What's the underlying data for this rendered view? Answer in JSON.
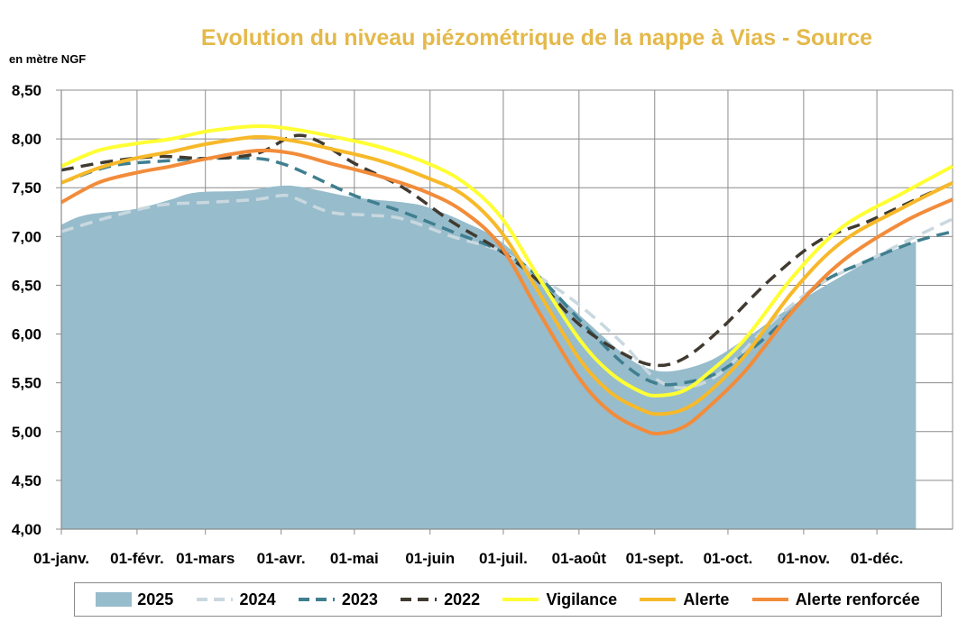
{
  "chart_data": {
    "type": "area",
    "title": "Evolution du niveau piézométrique de la nappe à Vias  - Source",
    "ylabel": "en mètre NGF",
    "ylim": [
      4.0,
      8.5
    ],
    "yticks": [
      "4,00",
      "4,50",
      "5,00",
      "5,50",
      "6,00",
      "6,50",
      "7,00",
      "7,50",
      "8,00",
      "8,50"
    ],
    "ytick_values": [
      4.0,
      4.5,
      5.0,
      5.5,
      6.0,
      6.5,
      7.0,
      7.5,
      8.0,
      8.5
    ],
    "xlim": [
      0,
      365
    ],
    "xticks": [
      "01-janv.",
      "01-févr.",
      "01-mars",
      "01-avr.",
      "01-mai",
      "01-juin",
      "01-juil.",
      "01-août",
      "01-sept.",
      "01-oct.",
      "01-nov.",
      "01-déc."
    ],
    "xtick_days": [
      0,
      31,
      59,
      90,
      120,
      151,
      181,
      212,
      243,
      273,
      304,
      334
    ],
    "grid": true,
    "legend_position": "bottom",
    "series": [
      {
        "name": "2025",
        "style": "area",
        "color": "#97bccc",
        "x": [
          0,
          10,
          30,
          45,
          55,
          75,
          90,
          100,
          120,
          140,
          150,
          165,
          180,
          195,
          212,
          230,
          240,
          250,
          265,
          280,
          300,
          320,
          335,
          350
        ],
        "y": [
          7.12,
          7.22,
          7.28,
          7.38,
          7.45,
          7.47,
          7.52,
          7.5,
          7.4,
          7.35,
          7.3,
          7.15,
          6.95,
          6.6,
          6.2,
          5.8,
          5.65,
          5.62,
          5.72,
          5.95,
          6.3,
          6.6,
          6.8,
          6.95
        ]
      },
      {
        "name": "2024",
        "style": "dashed",
        "color": "#c9d8df",
        "x": [
          0,
          20,
          40,
          60,
          80,
          90,
          95,
          110,
          125,
          140,
          160,
          180,
          195,
          212,
          230,
          243,
          255,
          270,
          290,
          310,
          330,
          350,
          365
        ],
        "y": [
          7.05,
          7.2,
          7.32,
          7.35,
          7.38,
          7.42,
          7.4,
          7.25,
          7.22,
          7.18,
          7.0,
          6.85,
          6.6,
          6.3,
          5.9,
          5.55,
          5.45,
          5.6,
          6.1,
          6.5,
          6.75,
          7.0,
          7.18
        ]
      },
      {
        "name": "2023",
        "style": "dashed",
        "color": "#3f7f8f",
        "x": [
          0,
          20,
          40,
          60,
          80,
          90,
          100,
          120,
          140,
          160,
          180,
          195,
          212,
          230,
          243,
          255,
          270,
          290,
          310,
          330,
          350,
          365
        ],
        "y": [
          7.55,
          7.72,
          7.77,
          7.8,
          7.8,
          7.75,
          7.65,
          7.42,
          7.25,
          7.05,
          6.85,
          6.6,
          6.15,
          5.7,
          5.5,
          5.5,
          5.62,
          6.0,
          6.5,
          6.75,
          6.95,
          7.05
        ]
      },
      {
        "name": "2022",
        "style": "dashed",
        "color": "#403a30",
        "x": [
          0,
          20,
          40,
          60,
          80,
          95,
          105,
          120,
          140,
          160,
          180,
          195,
          212,
          230,
          243,
          255,
          270,
          290,
          310,
          330,
          350,
          365
        ],
        "y": [
          7.68,
          7.77,
          7.82,
          7.8,
          7.85,
          8.03,
          7.98,
          7.75,
          7.5,
          7.15,
          6.85,
          6.55,
          6.1,
          5.8,
          5.68,
          5.75,
          6.05,
          6.55,
          6.95,
          7.15,
          7.38,
          7.55
        ]
      },
      {
        "name": "Vigilance",
        "style": "solid",
        "color": "#ffff33",
        "x": [
          0,
          15,
          30,
          45,
          60,
          80,
          95,
          110,
          130,
          150,
          165,
          180,
          195,
          212,
          225,
          238,
          245,
          255,
          265,
          280,
          300,
          320,
          345,
          365
        ],
        "y": [
          7.72,
          7.88,
          7.95,
          8.0,
          8.08,
          8.13,
          8.1,
          8.03,
          7.92,
          7.75,
          7.55,
          7.2,
          6.6,
          5.95,
          5.6,
          5.4,
          5.37,
          5.42,
          5.6,
          5.95,
          6.6,
          7.1,
          7.45,
          7.72
        ]
      },
      {
        "name": "Alerte",
        "style": "solid",
        "color": "#f7b92a",
        "x": [
          0,
          15,
          30,
          45,
          60,
          80,
          95,
          110,
          130,
          150,
          165,
          180,
          195,
          212,
          225,
          238,
          245,
          255,
          265,
          280,
          300,
          320,
          345,
          365
        ],
        "y": [
          7.55,
          7.7,
          7.8,
          7.87,
          7.95,
          8.02,
          7.98,
          7.9,
          7.78,
          7.6,
          7.42,
          7.05,
          6.45,
          5.75,
          5.4,
          5.22,
          5.18,
          5.23,
          5.4,
          5.78,
          6.45,
          6.95,
          7.3,
          7.55
        ]
      },
      {
        "name": "Alerte renforcée",
        "style": "solid",
        "color": "#f28c3a",
        "x": [
          0,
          15,
          30,
          45,
          60,
          80,
          95,
          110,
          130,
          150,
          165,
          180,
          195,
          212,
          225,
          238,
          245,
          255,
          265,
          280,
          300,
          320,
          345,
          365
        ],
        "y": [
          7.35,
          7.55,
          7.65,
          7.72,
          7.8,
          7.88,
          7.85,
          7.75,
          7.62,
          7.45,
          7.25,
          6.9,
          6.25,
          5.55,
          5.2,
          5.02,
          4.98,
          5.05,
          5.25,
          5.62,
          6.25,
          6.75,
          7.15,
          7.38
        ]
      }
    ]
  }
}
